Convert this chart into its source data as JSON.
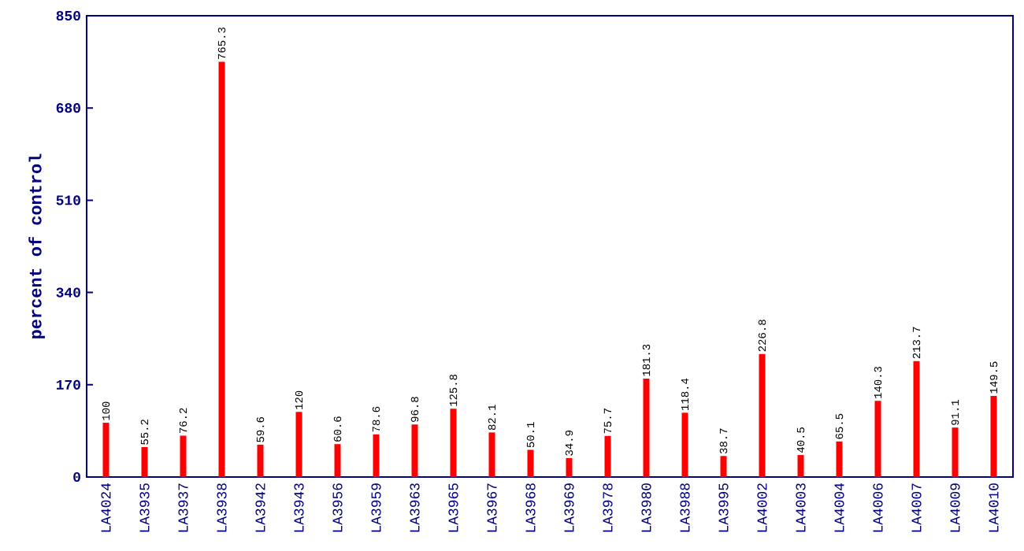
{
  "chart_data": {
    "type": "bar",
    "ylabel": "percent of control",
    "categories": [
      "LA4024",
      "LA3935",
      "LA3937",
      "LA3938",
      "LA3942",
      "LA3943",
      "LA3956",
      "LA3959",
      "LA3963",
      "LA3965",
      "LA3967",
      "LA3968",
      "LA3969",
      "LA3978",
      "LA3980",
      "LA3988",
      "LA3995",
      "LA4002",
      "LA4003",
      "LA4004",
      "LA4006",
      "LA4007",
      "LA4009",
      "LA4010"
    ],
    "values": [
      100,
      55.2,
      76.2,
      765.3,
      59.6,
      120,
      60.6,
      78.6,
      96.8,
      125.8,
      82.1,
      50.1,
      34.9,
      75.7,
      181.3,
      118.4,
      38.7,
      226.8,
      40.5,
      65.5,
      140.3,
      213.7,
      91.1,
      149.5
    ],
    "color": "#ff0000",
    "ylim": [
      0,
      850
    ],
    "yticks": [
      0,
      170,
      340,
      510,
      680,
      850
    ],
    "data_labels": true,
    "grid": false
  }
}
